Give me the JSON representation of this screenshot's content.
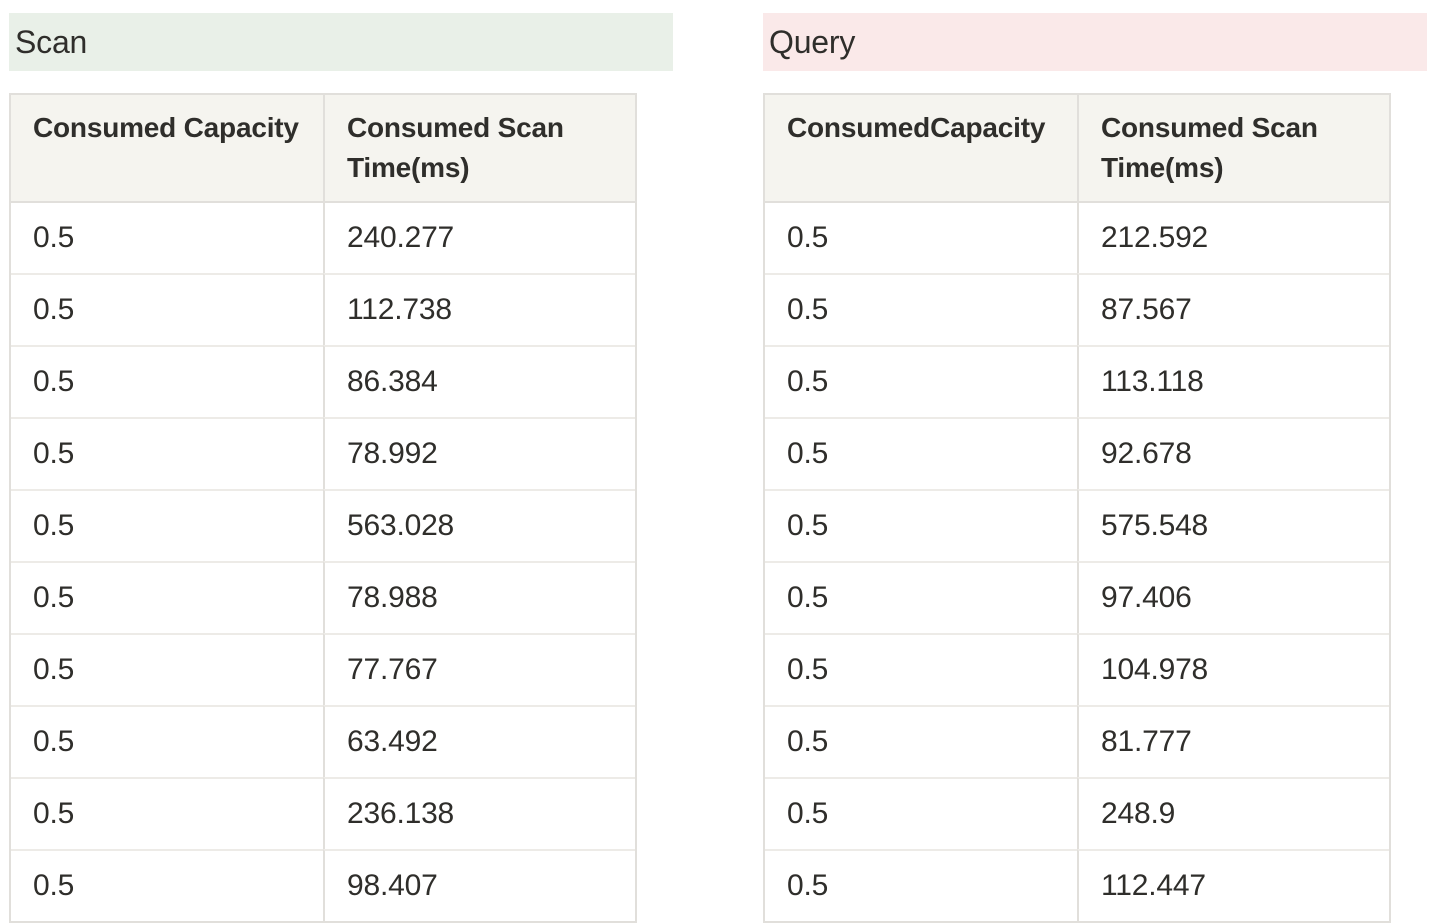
{
  "panels": [
    {
      "title": "Scan",
      "title_bg": "#e9f0e8",
      "columns": [
        "Consumed Capacity",
        "Consumed Scan Time(ms)"
      ],
      "rows": [
        [
          "0.5",
          "240.277"
        ],
        [
          "0.5",
          "112.738"
        ],
        [
          "0.5",
          "86.384"
        ],
        [
          "0.5",
          "78.992"
        ],
        [
          "0.5",
          "563.028"
        ],
        [
          "0.5",
          "78.988"
        ],
        [
          "0.5",
          "77.767"
        ],
        [
          "0.5",
          "63.492"
        ],
        [
          "0.5",
          "236.138"
        ],
        [
          "0.5",
          "98.407"
        ]
      ]
    },
    {
      "title": "Query",
      "title_bg": "#fae9e9",
      "columns": [
        "ConsumedCapacity",
        "Consumed Scan Time(ms)"
      ],
      "rows": [
        [
          "0.5",
          "212.592"
        ],
        [
          "0.5",
          "87.567"
        ],
        [
          "0.5",
          "113.118"
        ],
        [
          "0.5",
          "92.678"
        ],
        [
          "0.5",
          "575.548"
        ],
        [
          "0.5",
          "97.406"
        ],
        [
          "0.5",
          "104.978"
        ],
        [
          "0.5",
          "81.777"
        ],
        [
          "0.5",
          "248.9"
        ],
        [
          "0.5",
          "112.447"
        ]
      ]
    }
  ],
  "colors": {
    "page_bg": "#ffffff",
    "scan_band_bg": "#e9f0e8",
    "query_band_bg": "#fae9e9",
    "table_header_bg": "#f5f4ef",
    "table_border": "#e1dfdb",
    "row_divider": "#edebe7",
    "text": "#2f2e2b"
  }
}
